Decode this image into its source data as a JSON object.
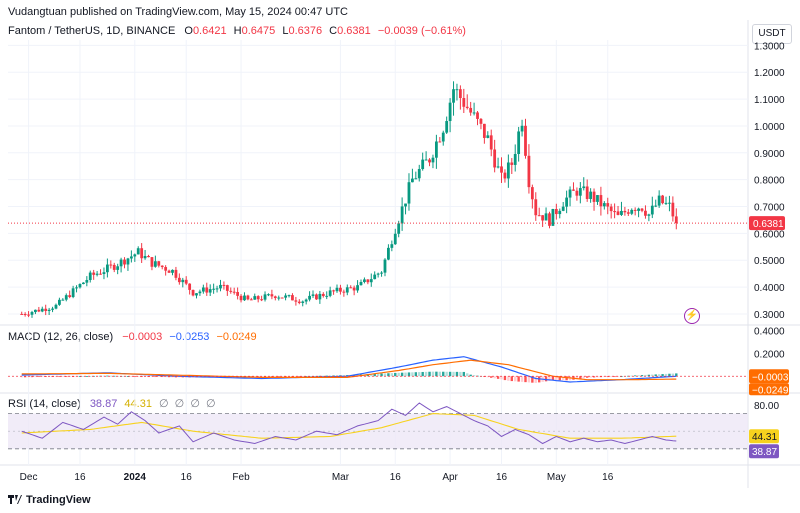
{
  "header": {
    "published": "Vudangtuan published on TradingView.com, May 15, 2024 00:47 UTC"
  },
  "symbol": {
    "name": "Fantom / TetherUS, 1D, BINANCE",
    "o_label": "O",
    "o": "0.6421",
    "h_label": "H",
    "h": "0.6475",
    "l_label": "L",
    "l": "0.6376",
    "c_label": "C",
    "c": "0.6381",
    "change": "−0.0039 (−0.61%)"
  },
  "currency_button": "USDT",
  "bolt_icon": "lightning-icon",
  "logo_text": "TradingView",
  "colors": {
    "up": "#089981",
    "down": "#f23645",
    "macd": "#2962ff",
    "signal": "#ff6d00",
    "rsi": "#7e57c2",
    "rsi_ma": "#f7d21e",
    "rsi_band": "#ede7f6"
  },
  "chart_data": [
    {
      "type": "candlestick",
      "x_ticks": [
        "Dec",
        "16",
        "2024",
        "16",
        "Feb",
        "Mar",
        "16",
        "Apr",
        "16",
        "May",
        "16"
      ],
      "y_ticks": [
        "0.3000",
        "0.4000",
        "0.5000",
        "0.6000",
        "0.7000",
        "0.8000",
        "0.9000",
        "1.0000",
        "1.1000",
        "1.2000",
        "1.3000"
      ],
      "ylim": [
        0.27,
        1.32
      ],
      "last_price_label": "0.6381",
      "last_price": 0.6381,
      "close_path": [
        {
          "d": 0,
          "v": 0.3
        },
        {
          "d": 10,
          "v": 0.33
        },
        {
          "d": 20,
          "v": 0.44
        },
        {
          "d": 27,
          "v": 0.48
        },
        {
          "d": 34,
          "v": 0.53
        },
        {
          "d": 38,
          "v": 0.49
        },
        {
          "d": 44,
          "v": 0.46
        },
        {
          "d": 50,
          "v": 0.38
        },
        {
          "d": 58,
          "v": 0.4
        },
        {
          "d": 66,
          "v": 0.35
        },
        {
          "d": 74,
          "v": 0.37
        },
        {
          "d": 82,
          "v": 0.35
        },
        {
          "d": 90,
          "v": 0.38
        },
        {
          "d": 98,
          "v": 0.4
        },
        {
          "d": 105,
          "v": 0.46
        },
        {
          "d": 109,
          "v": 0.62
        },
        {
          "d": 114,
          "v": 0.8
        },
        {
          "d": 119,
          "v": 0.88
        },
        {
          "d": 123,
          "v": 1.0
        },
        {
          "d": 126,
          "v": 1.14
        },
        {
          "d": 129,
          "v": 1.09
        },
        {
          "d": 132,
          "v": 1.03
        },
        {
          "d": 136,
          "v": 0.95
        },
        {
          "d": 140,
          "v": 0.8
        },
        {
          "d": 143,
          "v": 0.86
        },
        {
          "d": 146,
          "v": 1.03
        },
        {
          "d": 148,
          "v": 0.8
        },
        {
          "d": 150,
          "v": 0.68
        },
        {
          "d": 154,
          "v": 0.65
        },
        {
          "d": 158,
          "v": 0.72
        },
        {
          "d": 162,
          "v": 0.76
        },
        {
          "d": 166,
          "v": 0.74
        },
        {
          "d": 170,
          "v": 0.7
        },
        {
          "d": 174,
          "v": 0.66
        },
        {
          "d": 178,
          "v": 0.7
        },
        {
          "d": 181,
          "v": 0.7
        },
        {
          "d": 183,
          "v": 0.67
        },
        {
          "d": 186,
          "v": 0.72
        },
        {
          "d": 189,
          "v": 0.7
        },
        {
          "d": 191,
          "v": 0.64
        }
      ]
    },
    {
      "type": "macd",
      "title": "MACD (12, 26, close)",
      "values_text": [
        "−0.0003",
        "−0.0253",
        "−0.0249"
      ],
      "y_ticks": [
        "0.2000",
        "0.4000"
      ],
      "ylim": [
        -0.12,
        0.42
      ],
      "macd_label": "−0.0003",
      "signal_label": "−0.0249",
      "macd_path": [
        {
          "d": 0,
          "v": 0.01
        },
        {
          "d": 25,
          "v": 0.03
        },
        {
          "d": 45,
          "v": 0.0
        },
        {
          "d": 70,
          "v": -0.02
        },
        {
          "d": 95,
          "v": 0.0
        },
        {
          "d": 110,
          "v": 0.08
        },
        {
          "d": 120,
          "v": 0.14
        },
        {
          "d": 129,
          "v": 0.17
        },
        {
          "d": 140,
          "v": 0.08
        },
        {
          "d": 150,
          "v": -0.02
        },
        {
          "d": 160,
          "v": -0.05
        },
        {
          "d": 175,
          "v": -0.03
        },
        {
          "d": 191,
          "v": -0.0003
        }
      ],
      "signal_path": [
        {
          "d": 0,
          "v": 0.02
        },
        {
          "d": 25,
          "v": 0.025
        },
        {
          "d": 45,
          "v": 0.01
        },
        {
          "d": 70,
          "v": -0.01
        },
        {
          "d": 95,
          "v": -0.01
        },
        {
          "d": 110,
          "v": 0.05
        },
        {
          "d": 120,
          "v": 0.1
        },
        {
          "d": 131,
          "v": 0.14
        },
        {
          "d": 142,
          "v": 0.1
        },
        {
          "d": 155,
          "v": 0.0
        },
        {
          "d": 165,
          "v": -0.03
        },
        {
          "d": 178,
          "v": -0.03
        },
        {
          "d": 191,
          "v": -0.0249
        }
      ]
    },
    {
      "type": "rsi",
      "title": "RSI (14, close)",
      "values_text": [
        "38.87",
        "44.31"
      ],
      "na_text": [
        "∅",
        "∅",
        "∅",
        "∅"
      ],
      "y_ticks": [
        "80.00"
      ],
      "band": [
        30,
        70
      ],
      "ylim": [
        15,
        90
      ],
      "rsi_label": "38.87",
      "ma_label": "44.31",
      "rsi_path": [
        {
          "d": 0,
          "v": 50
        },
        {
          "d": 6,
          "v": 42
        },
        {
          "d": 12,
          "v": 60
        },
        {
          "d": 18,
          "v": 52
        },
        {
          "d": 24,
          "v": 66
        },
        {
          "d": 28,
          "v": 58
        },
        {
          "d": 32,
          "v": 72
        },
        {
          "d": 36,
          "v": 62
        },
        {
          "d": 40,
          "v": 48
        },
        {
          "d": 46,
          "v": 56
        },
        {
          "d": 50,
          "v": 38
        },
        {
          "d": 56,
          "v": 48
        },
        {
          "d": 62,
          "v": 40
        },
        {
          "d": 68,
          "v": 36
        },
        {
          "d": 74,
          "v": 44
        },
        {
          "d": 80,
          "v": 40
        },
        {
          "d": 86,
          "v": 50
        },
        {
          "d": 92,
          "v": 46
        },
        {
          "d": 98,
          "v": 56
        },
        {
          "d": 104,
          "v": 62
        },
        {
          "d": 108,
          "v": 75
        },
        {
          "d": 112,
          "v": 68
        },
        {
          "d": 116,
          "v": 82
        },
        {
          "d": 120,
          "v": 72
        },
        {
          "d": 124,
          "v": 78
        },
        {
          "d": 128,
          "v": 70
        },
        {
          "d": 132,
          "v": 62
        },
        {
          "d": 136,
          "v": 56
        },
        {
          "d": 140,
          "v": 44
        },
        {
          "d": 144,
          "v": 52
        },
        {
          "d": 148,
          "v": 46
        },
        {
          "d": 152,
          "v": 36
        },
        {
          "d": 156,
          "v": 44
        },
        {
          "d": 160,
          "v": 38
        },
        {
          "d": 164,
          "v": 42
        },
        {
          "d": 168,
          "v": 38
        },
        {
          "d": 172,
          "v": 40
        },
        {
          "d": 176,
          "v": 36
        },
        {
          "d": 180,
          "v": 40
        },
        {
          "d": 184,
          "v": 44
        },
        {
          "d": 188,
          "v": 40
        },
        {
          "d": 191,
          "v": 38.87
        }
      ],
      "ma_path": [
        {
          "d": 0,
          "v": 48
        },
        {
          "d": 20,
          "v": 52
        },
        {
          "d": 35,
          "v": 60
        },
        {
          "d": 50,
          "v": 50
        },
        {
          "d": 70,
          "v": 42
        },
        {
          "d": 90,
          "v": 44
        },
        {
          "d": 105,
          "v": 54
        },
        {
          "d": 120,
          "v": 70
        },
        {
          "d": 132,
          "v": 68
        },
        {
          "d": 145,
          "v": 52
        },
        {
          "d": 160,
          "v": 42
        },
        {
          "d": 175,
          "v": 42
        },
        {
          "d": 191,
          "v": 44.31
        }
      ]
    }
  ]
}
